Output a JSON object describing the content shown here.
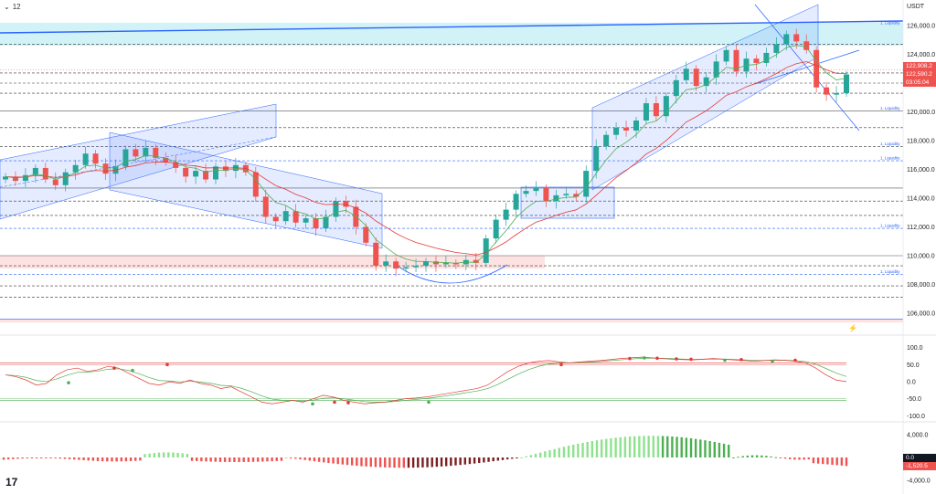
{
  "header": {
    "interval": "12",
    "currency": "USDT"
  },
  "price_axis": [
    "126,000.0",
    "124,000.0",
    "122,000.0",
    "120,000.0",
    "118,000.0",
    "116,000.0",
    "114,000.0",
    "112,000.0",
    "110,000.0",
    "108,000.0",
    "106,000.0"
  ],
  "price_tags": {
    "last": "122,908.2",
    "prev": "122,590.2",
    "countdown": "03:05:04"
  },
  "liquidity_label": "1. Liquidity",
  "oscillator_axis": [
    "100.0",
    "50.0",
    "0.0",
    "-50.0",
    "-100.0"
  ],
  "histogram_axis": [
    "4,000.0",
    "-4,000.0"
  ],
  "histogram_tags": {
    "zero": "0.0",
    "value": "-1,520.5"
  },
  "logo": "17",
  "colors": {
    "bull": "#26a69a",
    "bear": "#ef5350",
    "channel": "#2962ff",
    "fast": "#4caf50",
    "slow": "#e53935"
  },
  "chart_data": {
    "type": "candlestick",
    "price_range": [
      104500,
      127200
    ],
    "close_path": [
      115500,
      115200,
      115600,
      116100,
      115300,
      114900,
      115800,
      116300,
      117100,
      116400,
      115700,
      116200,
      117400,
      116900,
      117500,
      116800,
      116500,
      116100,
      115500,
      115900,
      115300,
      116200,
      115900,
      116300,
      115800,
      114100,
      112700,
      112400,
      113100,
      112300,
      112600,
      111900,
      112700,
      113800,
      113400,
      112000,
      110900,
      109300,
      109600,
      109100,
      109200,
      109300,
      109600,
      109400,
      109500,
      109400,
      109700,
      109500,
      111200,
      112500,
      113200,
      114300,
      114500,
      114700,
      113800,
      114200,
      114300,
      114100,
      115900,
      117600,
      118400,
      118900,
      118700,
      119400,
      120600,
      119700,
      121100,
      122200,
      123000,
      121800,
      122400,
      123500,
      124300,
      122800,
      123700,
      123400,
      124100,
      124700,
      125400,
      124900,
      124300,
      121700,
      121200,
      121300,
      122600
    ],
    "pane_values": [
      {
        "label": "last",
        "value": 122908.2
      },
      {
        "label": "prev",
        "value": 122590.2
      }
    ],
    "oscillator_range": [
      -100,
      100
    ],
    "oscillator_bands": [
      55,
      -55
    ],
    "histogram_range": [
      -4000,
      4000
    ],
    "histogram_last": -1520.5
  }
}
